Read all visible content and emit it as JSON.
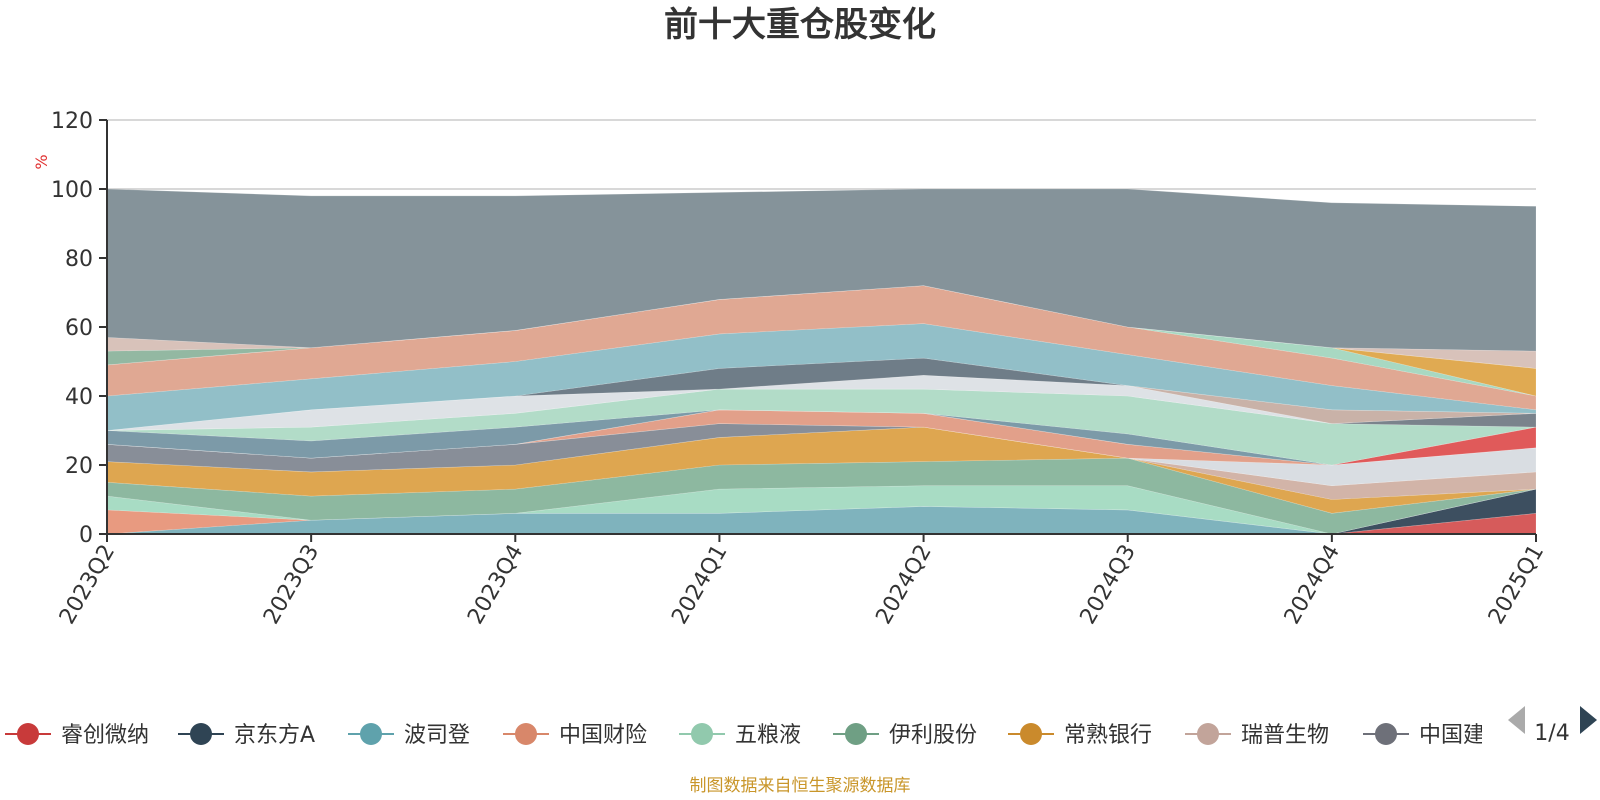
{
  "title": "前十大重仓股变化",
  "footer": "制图数据来自恒生聚源数据库",
  "legend_page": "1/4",
  "colors": {
    "background": "#ffffff",
    "rest_area": "#85939a",
    "grid": "#cccccc",
    "axis": "#333333",
    "unit": "#e03030",
    "footer": "#c9962a",
    "pager_active": "#2f4454",
    "pager_inactive": "#aaaaaa"
  },
  "chart_data": {
    "type": "area",
    "stacked": true,
    "title": "前十大重仓股变化",
    "ylabel": "%",
    "ylim": [
      0,
      120
    ],
    "y_ticks": [
      0,
      20,
      40,
      60,
      80,
      100,
      120
    ],
    "categories": [
      "2023Q2",
      "2023Q3",
      "2023Q4",
      "2024Q1",
      "2024Q2",
      "2024Q3",
      "2024Q4",
      "2025Q1"
    ],
    "grid": true,
    "legend_position": "bottom",
    "series": [
      {
        "name": "睿创微纳",
        "color": "#d65b5b",
        "values": [
          0,
          0,
          0,
          0,
          0,
          0,
          0,
          6
        ]
      },
      {
        "name": "京东方A",
        "color": "#3d4f60",
        "values": [
          0,
          0,
          0,
          0,
          0,
          0,
          0,
          7
        ]
      },
      {
        "name": "波司登",
        "color": "#7fb3bd",
        "values": [
          0,
          4,
          6,
          6,
          8,
          7,
          0,
          0
        ]
      },
      {
        "name": "中国财险",
        "color": "#e89a80",
        "values": [
          7,
          0,
          0,
          0,
          0,
          0,
          0,
          0
        ]
      },
      {
        "name": "五粮液",
        "color": "#a8dcc4",
        "values": [
          4,
          0,
          0,
          7,
          6,
          7,
          0,
          0
        ]
      },
      {
        "name": "伊利股份",
        "color": "#8db8a0",
        "values": [
          4,
          7,
          7,
          7,
          7,
          8,
          6,
          0
        ]
      },
      {
        "name": "常熟银行",
        "color": "#dea650",
        "values": [
          6,
          7,
          7,
          8,
          10,
          0,
          4,
          0
        ]
      },
      {
        "name": "瑞普生物",
        "color": "#d2b4a8",
        "values": [
          0,
          0,
          0,
          0,
          0,
          0,
          4,
          5
        ]
      },
      {
        "name": "中国建筑",
        "color": "#888e98",
        "values": [
          5,
          4,
          6,
          4,
          0,
          0,
          0,
          0
        ]
      },
      {
        "name": "",
        "color": "#d9dde2",
        "values": [
          0,
          0,
          0,
          0,
          0,
          0,
          6,
          7
        ]
      },
      {
        "name": "",
        "color": "#e2a08a",
        "values": [
          0,
          0,
          0,
          4,
          4,
          4,
          0,
          0
        ]
      },
      {
        "name": "",
        "color": "#a0d6c0",
        "values": [
          0,
          0,
          0,
          0,
          0,
          0,
          0,
          0
        ]
      },
      {
        "name": "",
        "color": "#e05a5a",
        "values": [
          0,
          0,
          0,
          0,
          0,
          0,
          0,
          6
        ]
      },
      {
        "name": "",
        "color": "#7c9aa8",
        "values": [
          4,
          5,
          5,
          0,
          0,
          3,
          0,
          0
        ]
      },
      {
        "name": "",
        "color": "#b2dcc8",
        "values": [
          0,
          4,
          4,
          6,
          7,
          11,
          12,
          0
        ]
      },
      {
        "name": "",
        "color": "#7a838c",
        "values": [
          0,
          0,
          0,
          0,
          0,
          0,
          0,
          4
        ]
      },
      {
        "name": "",
        "color": "#dee2e6",
        "values": [
          0,
          5,
          5,
          0,
          4,
          3,
          0,
          0
        ]
      },
      {
        "name": "",
        "color": "#c9b2a8",
        "values": [
          0,
          0,
          0,
          0,
          0,
          0,
          4,
          0
        ]
      },
      {
        "name": "",
        "color": "#6f7d88",
        "values": [
          0,
          0,
          0,
          6,
          5,
          0,
          0,
          0
        ]
      },
      {
        "name": "",
        "color": "#92bfc8",
        "values": [
          10,
          9,
          10,
          10,
          10,
          9,
          7,
          1
        ]
      },
      {
        "name": "",
        "color": "#e0a893",
        "values": [
          9,
          9,
          9,
          10,
          11,
          8,
          8,
          4
        ]
      },
      {
        "name": "",
        "color": "#a8d8c2",
        "values": [
          0,
          0,
          0,
          0,
          0,
          0,
          3,
          0
        ]
      },
      {
        "name": "",
        "color": "#e0aa52",
        "values": [
          0,
          0,
          0,
          0,
          0,
          0,
          0,
          8
        ]
      },
      {
        "name": "",
        "color": "#93b8a2",
        "values": [
          4,
          0,
          0,
          0,
          0,
          0,
          0,
          0
        ]
      },
      {
        "name": "",
        "color": "#d8c2ba",
        "values": [
          4,
          0,
          0,
          0,
          0,
          0,
          0,
          5
        ]
      },
      {
        "name": "",
        "color": "#85939a",
        "values": [
          43,
          44,
          39,
          31,
          28,
          40,
          42,
          42
        ]
      }
    ]
  },
  "legend": [
    {
      "label": "睿创微纳",
      "color": "#c83a3a"
    },
    {
      "label": "京东方A",
      "color": "#2f4454"
    },
    {
      "label": "波司登",
      "color": "#5fa2ac"
    },
    {
      "label": "中国财险",
      "color": "#d8876a"
    },
    {
      "label": "五粮液",
      "color": "#91c9ad"
    },
    {
      "label": "伊利股份",
      "color": "#6f9f84"
    },
    {
      "label": "常熟银行",
      "color": "#ca8a2c"
    },
    {
      "label": "瑞普生物",
      "color": "#c2a49a"
    },
    {
      "label": "中国建",
      "color": "#6e7079"
    }
  ]
}
